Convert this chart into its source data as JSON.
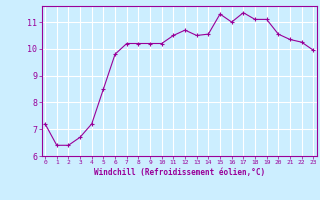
{
  "x": [
    0,
    1,
    2,
    3,
    4,
    5,
    6,
    7,
    8,
    9,
    10,
    11,
    12,
    13,
    14,
    15,
    16,
    17,
    18,
    19,
    20,
    21,
    22,
    23
  ],
  "y": [
    7.2,
    6.4,
    6.4,
    6.7,
    7.2,
    8.5,
    9.8,
    10.2,
    10.2,
    10.2,
    10.2,
    10.5,
    10.7,
    10.5,
    10.55,
    11.3,
    11.0,
    11.35,
    11.1,
    11.1,
    10.55,
    10.35,
    10.25,
    9.95
  ],
  "line_color": "#990099",
  "marker": "+",
  "marker_size": 3,
  "bg_color": "#cceeff",
  "grid_color": "#ffffff",
  "xlabel": "Windchill (Refroidissement éolien,°C)",
  "xlabel_color": "#990099",
  "tick_color": "#990099",
  "axis_color": "#990099",
  "ylim": [
    6,
    11.6
  ],
  "xlim": [
    -0.3,
    23.3
  ],
  "yticks": [
    6,
    7,
    8,
    9,
    10,
    11
  ],
  "ytick_labels": [
    "6",
    "7",
    "8",
    "9",
    "10",
    "11"
  ],
  "xticks": [
    0,
    1,
    2,
    3,
    4,
    5,
    6,
    7,
    8,
    9,
    10,
    11,
    12,
    13,
    14,
    15,
    16,
    17,
    18,
    19,
    20,
    21,
    22,
    23
  ],
  "xtick_labels": [
    "0",
    "1",
    "2",
    "3",
    "4",
    "5",
    "6",
    "7",
    "8",
    "9",
    "10",
    "11",
    "12",
    "13",
    "14",
    "15",
    "16",
    "17",
    "18",
    "19",
    "20",
    "21",
    "22",
    "23"
  ]
}
